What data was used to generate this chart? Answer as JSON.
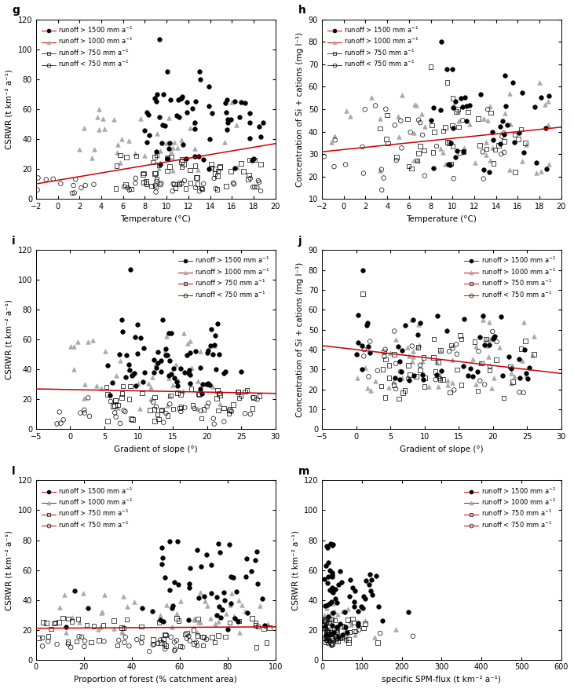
{
  "panels": [
    {
      "label": "g",
      "xlabel": "Temperature (°C)",
      "ylabel": "CSRWR (t km⁻² a⁻¹)",
      "xlim": [
        -2,
        20
      ],
      "ylim": [
        0,
        120
      ],
      "xticks": [
        -2,
        0,
        2,
        4,
        6,
        8,
        10,
        12,
        14,
        16,
        18,
        20
      ],
      "yticks": [
        0,
        20,
        40,
        60,
        80,
        100,
        120
      ],
      "trend_x": [
        -2,
        20
      ],
      "trend_y": [
        10,
        37
      ],
      "legend_loc": "upper left"
    },
    {
      "label": "h",
      "xlabel": "Temperature (°C)",
      "ylabel": "Concentration of Si + cations (mg l⁻¹)",
      "xlim": [
        -2,
        20
      ],
      "ylim": [
        10,
        90
      ],
      "xticks": [
        -2,
        0,
        2,
        4,
        6,
        8,
        10,
        12,
        14,
        16,
        18,
        20
      ],
      "yticks": [
        10,
        20,
        30,
        40,
        50,
        60,
        70,
        80,
        90
      ],
      "trend_x": [
        -2,
        20
      ],
      "trend_y": [
        31,
        42
      ],
      "legend_loc": "upper left"
    },
    {
      "label": "i",
      "xlabel": "Gradient of slope (°)",
      "ylabel": "CSRWR (t km⁻² a⁻¹)",
      "xlim": [
        -5,
        30
      ],
      "ylim": [
        0,
        120
      ],
      "xticks": [
        -5,
        0,
        5,
        10,
        15,
        20,
        25,
        30
      ],
      "yticks": [
        0,
        20,
        40,
        60,
        80,
        100,
        120
      ],
      "trend_x": [
        -5,
        30
      ],
      "trend_y": [
        27,
        24
      ],
      "legend_loc": "upper right"
    },
    {
      "label": "j",
      "xlabel": "Gradient of slope (°)",
      "ylabel": "Concentration of Si + cations (mg l⁻¹)",
      "xlim": [
        -5,
        30
      ],
      "ylim": [
        0,
        90
      ],
      "xticks": [
        -5,
        0,
        5,
        10,
        15,
        20,
        25,
        30
      ],
      "yticks": [
        0,
        10,
        20,
        30,
        40,
        50,
        60,
        70,
        80,
        90
      ],
      "trend_x": [
        -5,
        30
      ],
      "trend_y": [
        42,
        28
      ],
      "legend_loc": "upper right"
    },
    {
      "label": "l",
      "xlabel": "Proportion of forest (% catchment area)",
      "ylabel": "CSRWR (t km⁻² a⁻¹)",
      "xlim": [
        0,
        100
      ],
      "ylim": [
        0,
        120
      ],
      "xticks": [
        0,
        20,
        40,
        60,
        80,
        100
      ],
      "yticks": [
        0,
        20,
        40,
        60,
        80,
        100,
        120
      ],
      "trend_x": [
        0,
        100
      ],
      "trend_y": [
        21,
        22
      ],
      "legend_loc": "upper left"
    },
    {
      "label": "m",
      "xlabel": "specific SPM-flux (t km⁻² a⁻¹)",
      "ylabel": "CSRWR (t km⁻² a⁻¹)",
      "xlim": [
        0,
        600
      ],
      "ylim": [
        0,
        120
      ],
      "xticks": [
        0,
        100,
        200,
        300,
        400,
        500,
        600
      ],
      "yticks": [
        0,
        20,
        40,
        60,
        80,
        100,
        120
      ],
      "trend_x": null,
      "trend_y": null,
      "legend_loc": "upper right"
    }
  ],
  "colors": {
    "black": "#000000",
    "gray": "#aaaaaa",
    "red": "#cc0000",
    "white": "#ffffff"
  }
}
